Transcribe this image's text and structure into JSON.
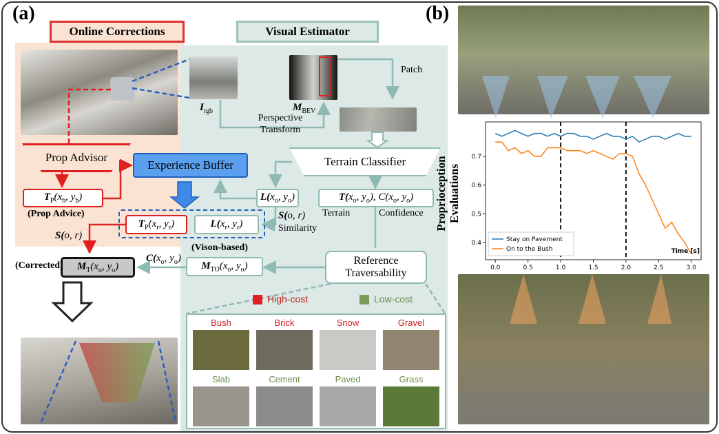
{
  "panel_labels": [
    "(a)",
    "(b)"
  ],
  "online_corrections": {
    "title": "Online Corrections",
    "prop_advisor": "Prop Advisor",
    "prop_advice_formula": [
      "T",
      "P",
      "(x",
      "b",
      ", y",
      "b",
      ")"
    ],
    "prop_advice_label": "(Prop Advice)",
    "similarity_formula": [
      "S(o, r)"
    ],
    "corrected_label": "(Corrected)",
    "corrected_formula": [
      "M",
      "T",
      "(x",
      "o",
      ", y",
      "o",
      ")"
    ]
  },
  "visual_estimator": {
    "title": "Visual Estimator",
    "rgb_formula": [
      "I",
      "rgb"
    ],
    "bev_formula": [
      "M",
      "BEV"
    ],
    "patch": "Patch",
    "transform": "Perspective Transform",
    "terrain_classifier": "Terrain Classifier",
    "loss_formula": [
      "L(x",
      "o",
      ", y",
      "o",
      ")"
    ],
    "output_formula": [
      "T(x",
      "o",
      ", y",
      "o",
      "), C(x",
      "o",
      ", y",
      "o",
      ")"
    ],
    "terrain": "Terrain",
    "confidence": "Confidence",
    "similarity_formula": [
      "S(o, r)"
    ],
    "similarity": "Similarity",
    "confidence_formula": [
      "C(x",
      "o",
      ", y",
      "o",
      ")"
    ],
    "vision_label": "(Vison-based)",
    "vision_formula": [
      "M",
      "TO",
      "(x",
      "o",
      ", y",
      "o",
      ")"
    ],
    "reference": "Reference Traversability"
  },
  "experience_buffer": {
    "title": "Experience Buffer",
    "prop_formula": [
      "T",
      "P",
      "(x",
      "r",
      ", y",
      "r",
      ")"
    ],
    "loss_formula": [
      "L(x",
      "r",
      ", y",
      "r",
      ")"
    ]
  },
  "legend": {
    "high": "High-cost",
    "low": "Low-cost"
  },
  "textures": {
    "high_cost": [
      "Bush",
      "Brick",
      "Snow",
      "Gravel"
    ],
    "low_cost": [
      "Slab",
      "Cement",
      "Paved",
      "Grass"
    ]
  },
  "chart_data": {
    "type": "line",
    "xlabel": "Time [s]",
    "ylabel": "Proprioception Evaluations",
    "x": [
      0,
      0.1,
      0.2,
      0.3,
      0.4,
      0.5,
      0.6,
      0.7,
      0.8,
      0.9,
      1,
      1.1,
      1.2,
      1.3,
      1.4,
      1.5,
      1.6,
      1.7,
      1.8,
      1.9,
      2,
      2.1,
      2.2,
      2.3,
      2.4,
      2.5,
      2.6,
      2.7,
      2.8,
      2.9,
      3
    ],
    "series": [
      {
        "name": "Stay on Pavement",
        "color": "#1f77b4",
        "values": [
          0.78,
          0.77,
          0.78,
          0.79,
          0.78,
          0.77,
          0.78,
          0.78,
          0.77,
          0.78,
          0.77,
          0.78,
          0.78,
          0.77,
          0.77,
          0.76,
          0.77,
          0.78,
          0.77,
          0.77,
          0.76,
          0.77,
          0.75,
          0.76,
          0.77,
          0.77,
          0.76,
          0.77,
          0.78,
          0.77,
          0.77
        ]
      },
      {
        "name": "On to the Bush",
        "color": "#ff7f0e",
        "values": [
          0.75,
          0.75,
          0.72,
          0.73,
          0.71,
          0.72,
          0.7,
          0.7,
          0.73,
          0.73,
          0.73,
          0.72,
          0.72,
          0.72,
          0.71,
          0.72,
          0.71,
          0.7,
          0.69,
          0.71,
          0.71,
          0.7,
          0.64,
          0.6,
          0.55,
          0.5,
          0.45,
          0.47,
          0.43,
          0.4,
          0.36
        ]
      }
    ],
    "xlim": [
      -0.15,
      3.15
    ],
    "ylim": [
      0.34,
      0.82
    ],
    "xticks": [
      {
        "value": 0,
        "label": "0.0"
      },
      0.5,
      {
        "value": 1,
        "label": "1.0"
      },
      1.5,
      {
        "value": 2,
        "label": "2.0"
      },
      2.5,
      {
        "value": 3,
        "label": "3.0"
      }
    ],
    "yticks": [
      0.4,
      0.5,
      0.6,
      0.7
    ],
    "vlines": [
      1,
      2
    ],
    "legend": "lower left"
  }
}
